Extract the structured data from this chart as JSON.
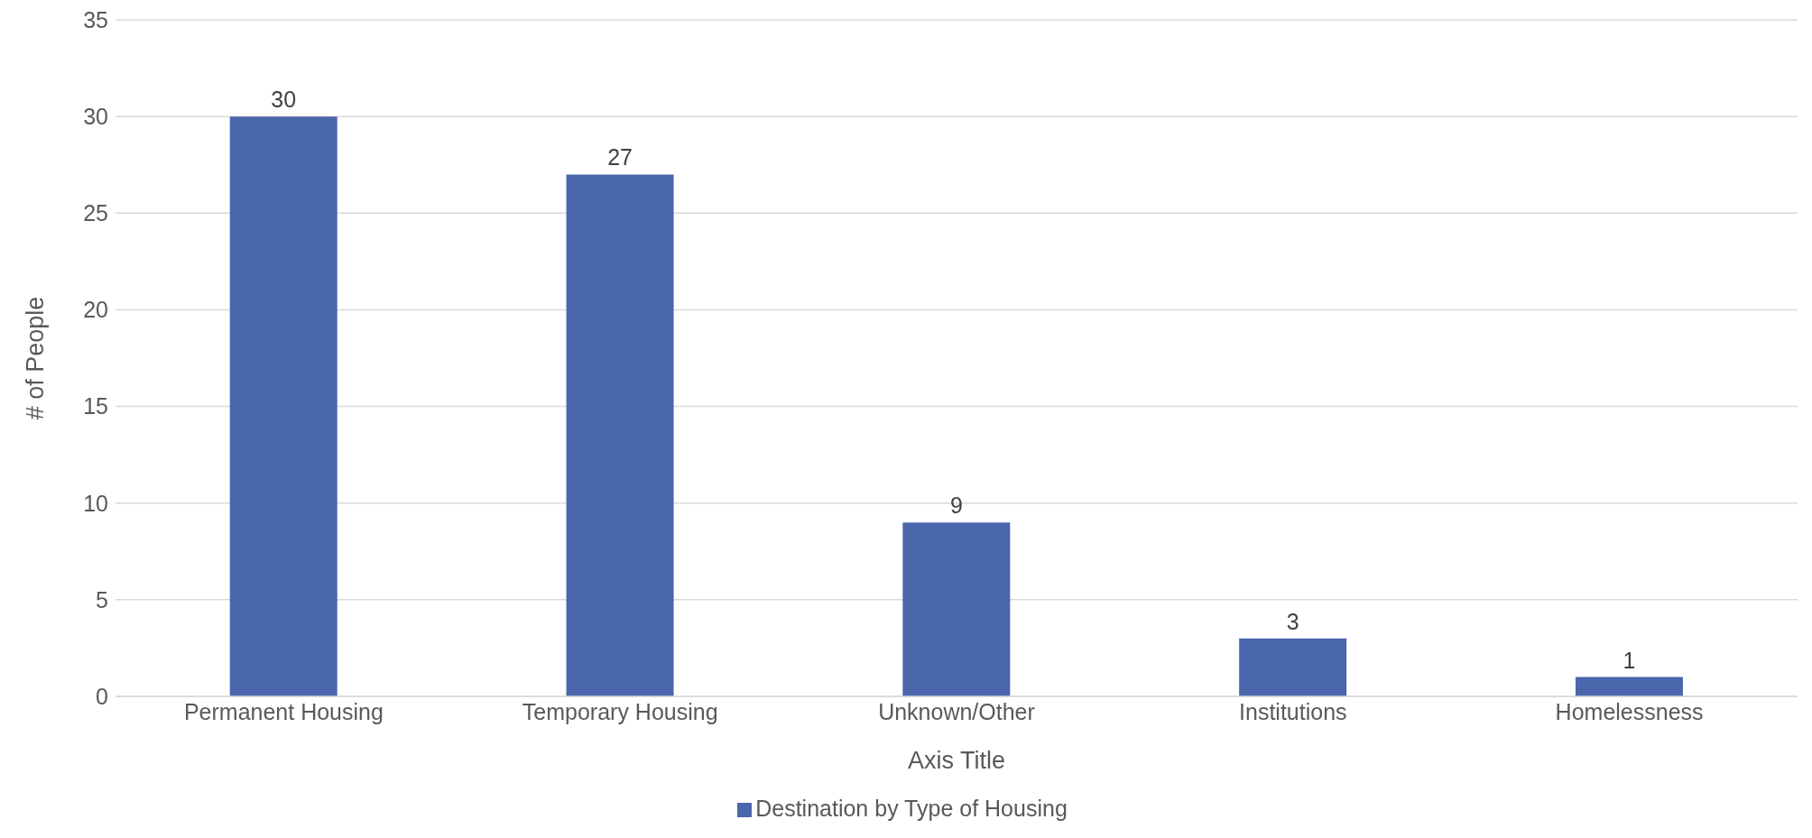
{
  "chart_data": {
    "type": "bar",
    "xlabel": "Axis Title",
    "ylabel": "# of People",
    "categories": [
      "Permanent Housing",
      "Temporary Housing",
      "Unknown/Other",
      "Institutions",
      "Homelessness"
    ],
    "series": [
      {
        "name": "Destination by Type of Housing",
        "color": "#4a66ac",
        "values": [
          30,
          27,
          9,
          3,
          1
        ]
      }
    ],
    "ylim": [
      0,
      35
    ],
    "yticks": [
      0,
      5,
      10,
      15,
      20,
      25,
      30,
      35
    ],
    "grid": "y",
    "legend": "bottom",
    "data_labels": true
  }
}
